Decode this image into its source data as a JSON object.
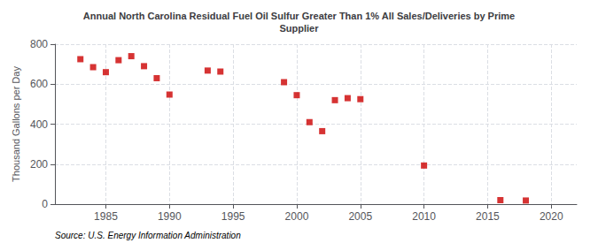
{
  "chart_data": {
    "type": "scatter",
    "title": "Annual North Carolina Residual Fuel Oil Sulfur Greater Than 1% All Sales/Deliveries by Prime\nSupplier",
    "ylabel": "Thousand Gallons per Day",
    "annotation": "Source: U.S. Energy Information Administration",
    "x": [
      1983,
      1984,
      1985,
      1986,
      1987,
      1988,
      1989,
      1990,
      1993,
      1994,
      1999,
      2000,
      2001,
      2002,
      2003,
      2004,
      2005,
      2010,
      2016,
      2018
    ],
    "values": [
      725,
      685,
      660,
      720,
      740,
      690,
      630,
      548,
      668,
      663,
      610,
      545,
      410,
      365,
      520,
      530,
      525,
      193,
      20,
      18
    ],
    "color": "#cc0000",
    "marker": "square",
    "xlim": [
      1981,
      2022
    ],
    "xticks": [
      1985,
      1990,
      1995,
      2000,
      2005,
      2010,
      2015,
      2020
    ],
    "ylim": [
      0,
      800
    ],
    "yticks": [
      0,
      200,
      400,
      600,
      800
    ],
    "grid": true
  }
}
